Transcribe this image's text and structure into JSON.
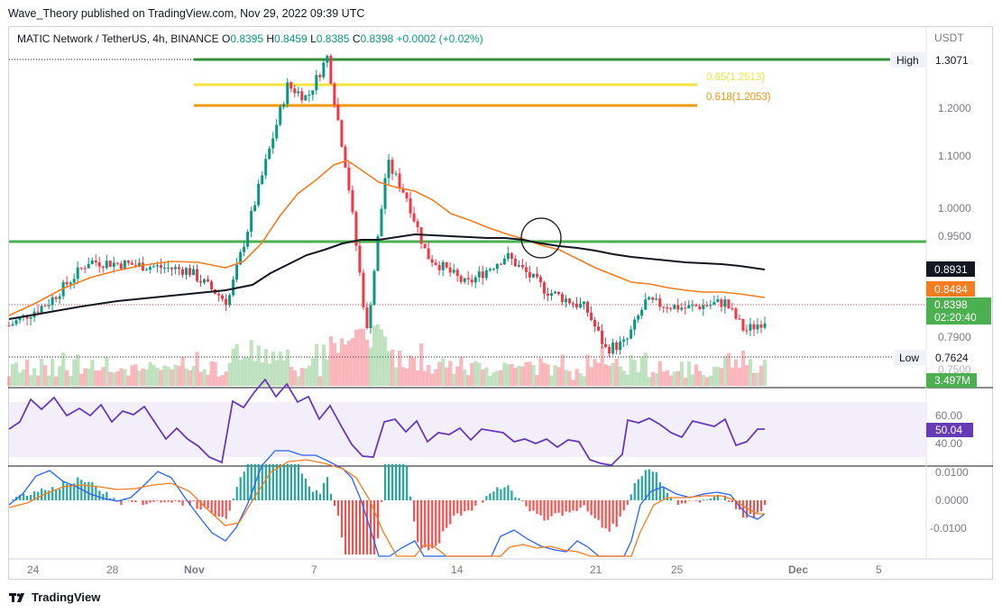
{
  "header": {
    "published_by": "Wave_Theory published on TradingView.com, Nov 29, 2022 09:39 UTC"
  },
  "legend": {
    "symbol": "MATIC Network / TetherUS, 4h, BINANCE",
    "open_label": "O",
    "open": "0.8395",
    "high_label": "H",
    "high": "0.8459",
    "low_label": "L",
    "low": "0.8385",
    "close_label": "C",
    "close": "0.8398",
    "change": "+0.0002 (+0.02%)"
  },
  "price_axis": {
    "currency": "USDT",
    "ticks": [
      "1.2000",
      "1.1000",
      "1.0000",
      "0.9500",
      "0.7900",
      "0.7500"
    ],
    "high_label": "High",
    "high_value": "1.3071",
    "low_label": "Low",
    "low_value": "0.7624",
    "ma_black_value": "0.8931",
    "ma_orange_value": "0.8484",
    "last_price": "0.8398",
    "countdown": "02:20:40",
    "volume_value": "3.497M"
  },
  "fib_levels": [
    {
      "label": "0.65(1.2513)",
      "value": 1.2513,
      "color": "#f5e342"
    },
    {
      "label": "0.618(1.2053)",
      "value": 1.2053,
      "color": "#f0980e"
    }
  ],
  "support_line": {
    "value": 0.94,
    "color": "#4caf50"
  },
  "rsi": {
    "value": "50.04",
    "ticks": [
      "60.00",
      "40.00"
    ]
  },
  "macd": {
    "ticks": [
      "0.0100",
      "0.0000",
      "-0.0100"
    ]
  },
  "time_axis": {
    "labels": [
      "24",
      "28",
      "Nov",
      "7",
      "14",
      "21",
      "25",
      "Dec",
      "5"
    ]
  },
  "colors": {
    "up": "#089981",
    "down": "#f23645",
    "ma_orange": "#f57c1f",
    "ma_black": "#131722",
    "rsi_line": "#673ab7",
    "rsi_band": "#f3effa",
    "macd_line": "#2962ff",
    "signal_line": "#f57c1f"
  },
  "chart_data": {
    "type": "candlestick",
    "title": "MATIC Network / TetherUS, 4h, BINANCE",
    "ylabel": "USDT",
    "ylim": [
      0.75,
      1.31
    ],
    "x_range": [
      "Oct 24",
      "Dec 5"
    ],
    "series": [
      {
        "name": "MA (orange)",
        "points": [
          [
            "Oct 22",
            0.832
          ],
          [
            "Oct 26",
            0.875
          ],
          [
            "Oct 30",
            0.905
          ],
          [
            "Nov 3",
            0.89
          ],
          [
            "Nov 5",
            1.0
          ],
          [
            "Nov 7",
            1.09
          ],
          [
            "Nov 9",
            1.05
          ],
          [
            "Nov 12",
            1.05
          ],
          [
            "Nov 14",
            0.995
          ],
          [
            "Nov 18",
            0.948
          ],
          [
            "Nov 22",
            0.89
          ],
          [
            "Nov 26",
            0.85
          ],
          [
            "Nov 29",
            0.848
          ]
        ]
      },
      {
        "name": "MA (black)",
        "points": [
          [
            "Oct 22",
            0.825
          ],
          [
            "Oct 28",
            0.845
          ],
          [
            "Nov 3",
            0.857
          ],
          [
            "Nov 6",
            0.905
          ],
          [
            "Nov 8",
            0.94
          ],
          [
            "Nov 11",
            0.95
          ],
          [
            "Nov 15",
            0.948
          ],
          [
            "Nov 20",
            0.935
          ],
          [
            "Nov 25",
            0.906
          ],
          [
            "Nov 29",
            0.893
          ]
        ]
      },
      {
        "name": "Close (approx)",
        "points": [
          [
            "Oct 22",
            0.83
          ],
          [
            "Oct 24",
            0.87
          ],
          [
            "Oct 26",
            0.94
          ],
          [
            "Oct 28",
            0.935
          ],
          [
            "Oct 31",
            0.925
          ],
          [
            "Nov 2",
            0.87
          ],
          [
            "Nov 4",
            1.12
          ],
          [
            "Nov 5",
            1.24
          ],
          [
            "Nov 6",
            1.22
          ],
          [
            "Nov 7",
            1.29
          ],
          [
            "Nov 8",
            1.09
          ],
          [
            "Nov 9",
            0.82
          ],
          [
            "Nov 10",
            1.11
          ],
          [
            "Nov 11",
            1.05
          ],
          [
            "Nov 12",
            0.95
          ],
          [
            "Nov 14",
            0.9
          ],
          [
            "Nov 16",
            0.95
          ],
          [
            "Nov 18",
            0.89
          ],
          [
            "Nov 20",
            0.86
          ],
          [
            "Nov 21",
            0.79
          ],
          [
            "Nov 22",
            0.8
          ],
          [
            "Nov 23",
            0.87
          ],
          [
            "Nov 25",
            0.86
          ],
          [
            "Nov 27",
            0.87
          ],
          [
            "Nov 28",
            0.82
          ],
          [
            "Nov 29",
            0.8398
          ]
        ]
      }
    ],
    "annotations": [
      "High 1.3071",
      "Low 0.7624",
      "0.65(1.2513)",
      "0.618(1.2053)"
    ]
  }
}
